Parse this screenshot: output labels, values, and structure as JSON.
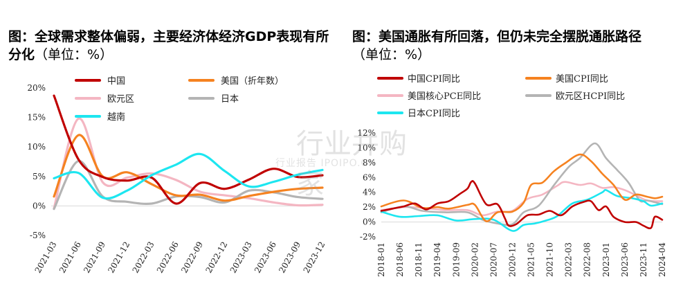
{
  "charts": [
    {
      "title_main": "图：全球需求整体偏弱，主要经济体经济GDP表现有所分化",
      "title_unit": "（单位：%）",
      "legend": [
        "中国",
        "美国（折年数）",
        "欧元区",
        "日本",
        "越南"
      ],
      "colors": {
        "china": "#c00000",
        "us": "#f58220",
        "euro": "#f4b6c2",
        "japan": "#b4b4b4",
        "vietnam": "#1de6f0"
      },
      "y_ticks": [
        "20%",
        "15%",
        "10%",
        "5%",
        "0%",
        "-5%"
      ],
      "x_ticks": [
        "2021-03",
        "2021-06",
        "2021-09",
        "2021-12",
        "2022-03",
        "2022-06",
        "2022-09",
        "2022-12",
        "2023-03",
        "2023-06",
        "2023-09",
        "2023-12"
      ]
    },
    {
      "title_main": "图：美国通胀有所回落，但仍未完全摆脱通胀路径",
      "title_unit": "（单位：%）",
      "legend": [
        "中国CPI同比",
        "美国CPI同比",
        "美国核心PCE同比",
        "欧元区HCPI同比",
        "日本CPI同比"
      ],
      "colors": {
        "china": "#c00000",
        "us": "#f58220",
        "pce": "#f4b6c2",
        "euro": "#b4b4b4",
        "japan": "#1de6f0"
      },
      "y_ticks": [
        "12%",
        "10%",
        "8%",
        "6%",
        "4%",
        "2%",
        "0%",
        "-2%"
      ],
      "x_ticks": [
        "2018-01",
        "2018-06",
        "2018-11",
        "2019-04",
        "2019-09",
        "2020-02",
        "2020-07",
        "2020-12",
        "2021-05",
        "2021-10",
        "2022-03",
        "2022-08",
        "2023-01",
        "2023-06",
        "2023-11",
        "2024-04"
      ]
    }
  ],
  "watermark": {
    "big": "行业并购家",
    "small": "行业报告 IPOIPO.CN"
  },
  "chart_data": [
    {
      "type": "line",
      "title": "全球需求整体偏弱，主要经济体经济GDP表现有所分化",
      "ylabel": "",
      "categories": [
        "2021-03",
        "2021-06",
        "2021-09",
        "2021-12",
        "2022-03",
        "2022-06",
        "2022-09",
        "2022-12",
        "2023-03",
        "2023-06",
        "2023-09",
        "2023-12"
      ],
      "ylim": [
        -5,
        20
      ],
      "series": [
        {
          "name": "中国",
          "values": [
            18.7,
            7.9,
            4.9,
            4.3,
            4.8,
            0.4,
            3.9,
            2.9,
            4.5,
            6.3,
            4.9,
            5.2
          ]
        },
        {
          "name": "美国（折年数）",
          "values": [
            1.6,
            12.0,
            5.0,
            5.7,
            3.7,
            1.8,
            1.9,
            0.9,
            1.7,
            2.4,
            2.9,
            3.1
          ]
        },
        {
          "name": "欧元区",
          "values": [
            -0.4,
            14.8,
            4.0,
            4.8,
            5.5,
            4.4,
            2.4,
            1.8,
            1.3,
            0.6,
            0.1,
            0.2
          ]
        },
        {
          "name": "日本",
          "values": [
            -0.5,
            7.6,
            1.6,
            0.7,
            0.4,
            1.6,
            1.5,
            0.6,
            2.6,
            2.3,
            1.5,
            1.2
          ]
        },
        {
          "name": "越南",
          "values": [
            4.7,
            5.6,
            1.4,
            2.6,
            5.2,
            7.0,
            8.8,
            5.9,
            3.3,
            4.1,
            5.3,
            6.1
          ]
        }
      ]
    },
    {
      "type": "line",
      "title": "美国通胀有所回落，但仍未完全摆脱通胀路径",
      "ylabel": "",
      "x_ticks": [
        "2018-01",
        "2018-06",
        "2018-11",
        "2019-04",
        "2019-09",
        "2020-02",
        "2020-07",
        "2020-12",
        "2021-05",
        "2021-10",
        "2022-03",
        "2022-08",
        "2023-01",
        "2023-06",
        "2023-11",
        "2024-04"
      ],
      "ylim": [
        -2,
        12
      ],
      "series": [
        {
          "name": "中国CPI同比",
          "points": [
            [
              "2018-01",
              1.5
            ],
            [
              "2018-04",
              1.8
            ],
            [
              "2018-07",
              2.1
            ],
            [
              "2018-10",
              2.5
            ],
            [
              "2019-01",
              1.7
            ],
            [
              "2019-04",
              2.5
            ],
            [
              "2019-07",
              2.8
            ],
            [
              "2019-10",
              3.8
            ],
            [
              "2019-12",
              4.5
            ],
            [
              "2020-01",
              5.4
            ],
            [
              "2020-02",
              5.2
            ],
            [
              "2020-05",
              2.4
            ],
            [
              "2020-08",
              2.4
            ],
            [
              "2020-10",
              0.5
            ],
            [
              "2020-11",
              -0.5
            ],
            [
              "2021-01",
              -0.3
            ],
            [
              "2021-04",
              0.9
            ],
            [
              "2021-07",
              1.0
            ],
            [
              "2021-10",
              1.5
            ],
            [
              "2022-01",
              0.9
            ],
            [
              "2022-04",
              2.1
            ],
            [
              "2022-07",
              2.7
            ],
            [
              "2022-09",
              2.8
            ],
            [
              "2022-11",
              1.6
            ],
            [
              "2023-01",
              2.1
            ],
            [
              "2023-03",
              0.7
            ],
            [
              "2023-06",
              0.0
            ],
            [
              "2023-09",
              0.0
            ],
            [
              "2023-11",
              -0.5
            ],
            [
              "2024-01",
              -0.8
            ],
            [
              "2024-02",
              0.7
            ],
            [
              "2024-04",
              0.3
            ]
          ]
        },
        {
          "name": "美国CPI同比",
          "points": [
            [
              "2018-01",
              2.1
            ],
            [
              "2018-07",
              2.9
            ],
            [
              "2018-12",
              1.9
            ],
            [
              "2019-04",
              2.0
            ],
            [
              "2019-07",
              1.8
            ],
            [
              "2019-12",
              2.3
            ],
            [
              "2020-02",
              2.3
            ],
            [
              "2020-05",
              0.1
            ],
            [
              "2020-08",
              1.3
            ],
            [
              "2020-12",
              1.4
            ],
            [
              "2021-03",
              2.6
            ],
            [
              "2021-05",
              5.0
            ],
            [
              "2021-08",
              5.3
            ],
            [
              "2021-11",
              6.8
            ],
            [
              "2022-02",
              7.9
            ],
            [
              "2022-06",
              9.1
            ],
            [
              "2022-09",
              8.2
            ],
            [
              "2022-12",
              6.5
            ],
            [
              "2023-03",
              5.0
            ],
            [
              "2023-06",
              3.0
            ],
            [
              "2023-09",
              3.7
            ],
            [
              "2023-12",
              3.4
            ],
            [
              "2024-02",
              3.2
            ],
            [
              "2024-04",
              3.4
            ]
          ]
        },
        {
          "name": "美国核心PCE同比",
          "points": [
            [
              "2018-01",
              1.6
            ],
            [
              "2018-07",
              2.0
            ],
            [
              "2018-12",
              1.9
            ],
            [
              "2019-06",
              1.6
            ],
            [
              "2019-12",
              1.6
            ],
            [
              "2020-04",
              0.9
            ],
            [
              "2020-08",
              1.4
            ],
            [
              "2020-12",
              1.5
            ],
            [
              "2021-04",
              3.1
            ],
            [
              "2021-08",
              3.7
            ],
            [
              "2021-12",
              4.9
            ],
            [
              "2022-02",
              5.4
            ],
            [
              "2022-06",
              5.0
            ],
            [
              "2022-09",
              5.2
            ],
            [
              "2022-12",
              4.6
            ],
            [
              "2023-03",
              4.7
            ],
            [
              "2023-06",
              4.3
            ],
            [
              "2023-09",
              3.6
            ],
            [
              "2023-12",
              2.9
            ],
            [
              "2024-04",
              2.8
            ]
          ]
        },
        {
          "name": "欧元区HCPI同比",
          "points": [
            [
              "2018-01",
              1.3
            ],
            [
              "2018-07",
              2.1
            ],
            [
              "2018-12",
              1.5
            ],
            [
              "2019-06",
              1.3
            ],
            [
              "2019-12",
              1.3
            ],
            [
              "2020-04",
              0.3
            ],
            [
              "2020-08",
              -0.2
            ],
            [
              "2020-12",
              -0.3
            ],
            [
              "2021-03",
              1.3
            ],
            [
              "2021-07",
              2.2
            ],
            [
              "2021-11",
              4.9
            ],
            [
              "2022-03",
              7.4
            ],
            [
              "2022-06",
              8.6
            ],
            [
              "2022-10",
              10.6
            ],
            [
              "2023-01",
              8.6
            ],
            [
              "2023-04",
              7.0
            ],
            [
              "2023-07",
              5.3
            ],
            [
              "2023-10",
              2.9
            ],
            [
              "2023-12",
              2.9
            ],
            [
              "2024-04",
              2.4
            ]
          ]
        },
        {
          "name": "日本CPI同比",
          "points": [
            [
              "2018-01",
              1.4
            ],
            [
              "2018-06",
              0.7
            ],
            [
              "2018-11",
              0.8
            ],
            [
              "2019-04",
              0.9
            ],
            [
              "2019-09",
              0.2
            ],
            [
              "2020-02",
              0.4
            ],
            [
              "2020-07",
              0.3
            ],
            [
              "2020-12",
              -1.2
            ],
            [
              "2021-03",
              -0.4
            ],
            [
              "2021-06",
              -0.2
            ],
            [
              "2021-09",
              0.2
            ],
            [
              "2021-12",
              0.8
            ],
            [
              "2022-04",
              2.5
            ],
            [
              "2022-08",
              3.0
            ],
            [
              "2022-12",
              4.0
            ],
            [
              "2023-01",
              4.3
            ],
            [
              "2023-04",
              3.5
            ],
            [
              "2023-08",
              3.2
            ],
            [
              "2023-11",
              2.8
            ],
            [
              "2024-01",
              2.2
            ],
            [
              "2024-04",
              2.5
            ]
          ]
        }
      ]
    }
  ]
}
